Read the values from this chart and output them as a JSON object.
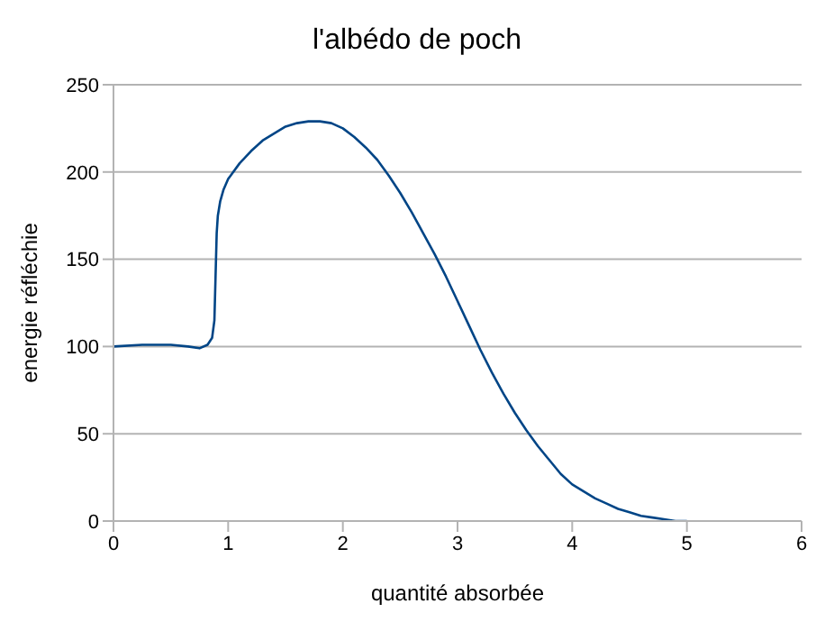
{
  "chart_data": {
    "type": "line",
    "title": "l'albédo de poch",
    "xlabel": "quantité absorbée",
    "ylabel": "energie réfléchie",
    "series": [
      {
        "color": "#004586",
        "x": [
          0,
          0.25,
          0.5,
          0.65,
          0.75,
          0.82,
          0.86,
          0.88,
          0.89,
          0.9,
          0.91,
          0.93,
          0.96,
          1.0,
          1.1,
          1.2,
          1.3,
          1.4,
          1.5,
          1.6,
          1.7,
          1.8,
          1.9,
          2.0,
          2.1,
          2.2,
          2.3,
          2.4,
          2.5,
          2.6,
          2.7,
          2.8,
          2.9,
          3.0,
          3.1,
          3.2,
          3.3,
          3.4,
          3.5,
          3.6,
          3.7,
          3.8,
          3.9,
          4.0,
          4.1,
          4.2,
          4.3,
          4.4,
          4.5,
          4.6,
          4.7,
          4.8,
          4.9,
          5.0
        ],
        "values": [
          100,
          101,
          101,
          100,
          99,
          101,
          105,
          115,
          140,
          165,
          175,
          183,
          190,
          196,
          205,
          212,
          218,
          222,
          226,
          228,
          229,
          229,
          228,
          225,
          220,
          214,
          207,
          198,
          188,
          177,
          165,
          153,
          140,
          126,
          112,
          98,
          85,
          73,
          62,
          52,
          43,
          35,
          27,
          21,
          17,
          13,
          10,
          7,
          5,
          3,
          2,
          1,
          0,
          0
        ]
      }
    ],
    "xlim": [
      0,
      6
    ],
    "xticks": [
      0,
      1,
      2,
      3,
      4,
      5,
      6
    ],
    "ylim": [
      0,
      250
    ],
    "yticks": [
      0,
      50,
      100,
      150,
      200,
      250
    ],
    "grid": "y",
    "legend": false,
    "marker": "none",
    "line_style": "solid"
  }
}
